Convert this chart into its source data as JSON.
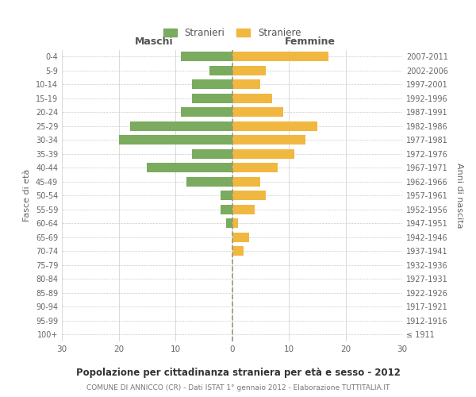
{
  "age_groups": [
    "100+",
    "95-99",
    "90-94",
    "85-89",
    "80-84",
    "75-79",
    "70-74",
    "65-69",
    "60-64",
    "55-59",
    "50-54",
    "45-49",
    "40-44",
    "35-39",
    "30-34",
    "25-29",
    "20-24",
    "15-19",
    "10-14",
    "5-9",
    "0-4"
  ],
  "birth_years": [
    "≤ 1911",
    "1912-1916",
    "1917-1921",
    "1922-1926",
    "1927-1931",
    "1932-1936",
    "1937-1941",
    "1942-1946",
    "1947-1951",
    "1952-1956",
    "1957-1961",
    "1962-1966",
    "1967-1971",
    "1972-1976",
    "1977-1981",
    "1982-1986",
    "1987-1991",
    "1992-1996",
    "1997-2001",
    "2002-2006",
    "2007-2011"
  ],
  "males": [
    0,
    0,
    0,
    0,
    0,
    0,
    0,
    0,
    1,
    2,
    2,
    8,
    15,
    7,
    20,
    18,
    9,
    7,
    7,
    4,
    9
  ],
  "females": [
    0,
    0,
    0,
    0,
    0,
    0,
    2,
    3,
    1,
    4,
    6,
    5,
    8,
    11,
    13,
    15,
    9,
    7,
    5,
    6,
    17
  ],
  "male_color": "#7aab5e",
  "female_color": "#f0b840",
  "title": "Popolazione per cittadinanza straniera per età e sesso - 2012",
  "subtitle": "COMUNE DI ANNICCO (CR) - Dati ISTAT 1° gennaio 2012 - Elaborazione TUTTITALIA.IT",
  "ylabel_left": "Fasce di età",
  "ylabel_right": "Anni di nascita",
  "xlabel_left": "Maschi",
  "xlabel_right": "Femmine",
  "legend_male": "Stranieri",
  "legend_female": "Straniere",
  "xlim": 30,
  "background_color": "#ffffff",
  "grid_color": "#cccccc",
  "dashed_line_color": "#999977"
}
